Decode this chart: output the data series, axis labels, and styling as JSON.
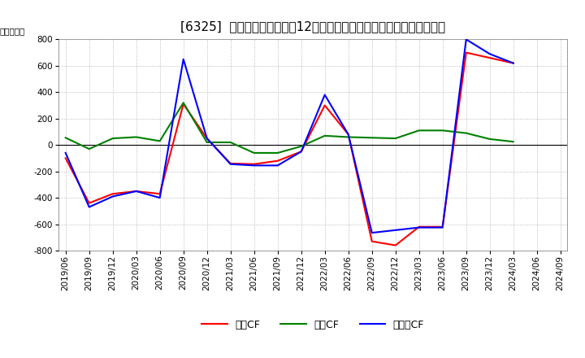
{
  "title": "[6325]  キャッシュフローの12か月移動合計の対前年同期増減額の推移",
  "ylabel": "（百万円）",
  "ylim": [
    -800,
    800
  ],
  "yticks": [
    -800,
    -600,
    -400,
    -200,
    0,
    200,
    400,
    600,
    800
  ],
  "x_labels": [
    "2019/06",
    "2019/09",
    "2019/12",
    "2020/03",
    "2020/06",
    "2020/09",
    "2020/12",
    "2021/03",
    "2021/06",
    "2021/09",
    "2021/12",
    "2022/03",
    "2022/06",
    "2022/09",
    "2022/12",
    "2023/03",
    "2023/06",
    "2023/09",
    "2023/12",
    "2024/03",
    "2024/06",
    "2024/09"
  ],
  "eigyo_cf": [
    -100,
    -440,
    -370,
    -350,
    -370,
    310,
    50,
    -140,
    -145,
    -120,
    -50,
    300,
    80,
    -730,
    -760,
    -620,
    -620,
    700,
    660,
    620,
    null,
    null
  ],
  "toshi_cf": [
    55,
    -30,
    50,
    60,
    30,
    320,
    20,
    20,
    -60,
    -60,
    -10,
    70,
    60,
    55,
    50,
    110,
    110,
    90,
    45,
    25,
    null,
    null
  ],
  "free_cf": [
    -60,
    -470,
    -390,
    -350,
    -400,
    650,
    50,
    -145,
    -155,
    -155,
    -50,
    380,
    80,
    -665,
    -645,
    -625,
    -625,
    800,
    690,
    620,
    null,
    null
  ],
  "colors": {
    "eigyo": "#ff0000",
    "toshi": "#008000",
    "free": "#0000ff"
  },
  "legend_labels": [
    "営業CF",
    "投資CF",
    "フリーCF"
  ],
  "background_color": "#ffffff",
  "grid_color": "#aaaaaa",
  "title_fontsize": 11,
  "axis_fontsize": 7.5
}
